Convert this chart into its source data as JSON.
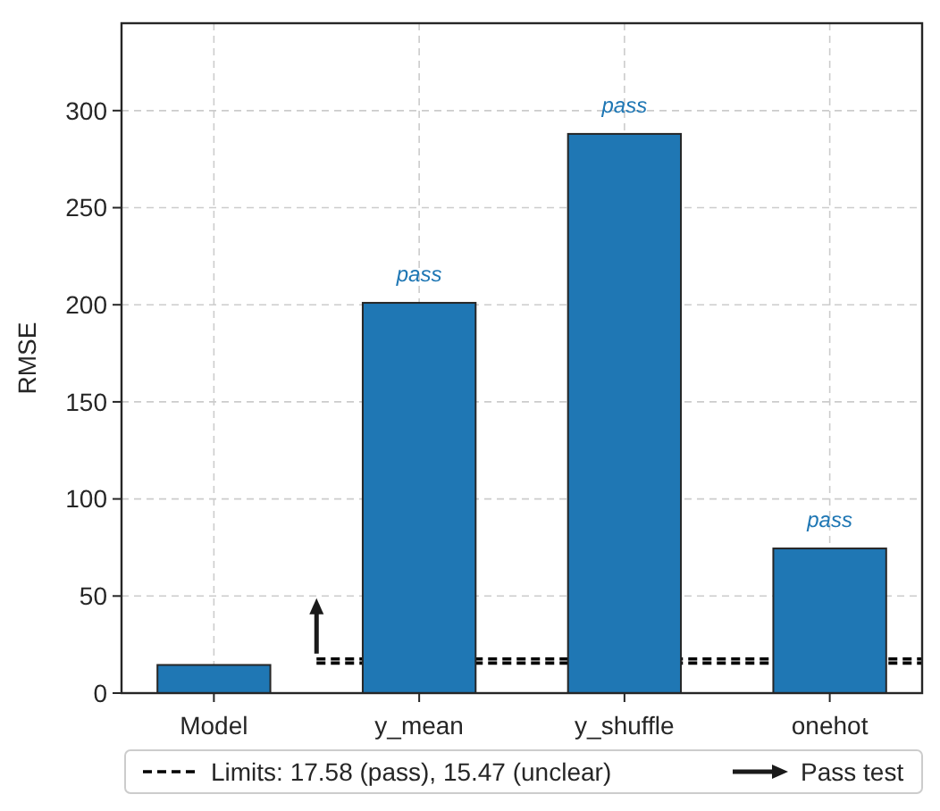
{
  "chart_data": {
    "type": "bar",
    "ylabel": "RMSE",
    "categories": [
      "Model",
      "y_mean",
      "y_shuffle",
      "onehot"
    ],
    "values": [
      14.5,
      201,
      288,
      74.5
    ],
    "color": "#1f77b4",
    "ylim": [
      0,
      345
    ],
    "yticks": [
      0,
      50,
      100,
      150,
      200,
      250,
      300
    ],
    "grid": true,
    "legend": "bottom",
    "ref_lines": [
      {
        "axis": "y",
        "value": 17.58,
        "label": "Limits: 17.58 (pass), 15.47 (unclear)",
        "color": "#000000",
        "line_style": "dashed"
      },
      {
        "axis": "y",
        "value": 15.47,
        "color": "#000000",
        "line_style": "dashed"
      }
    ],
    "annotations": [
      {
        "text": "pass",
        "x": "y_mean",
        "y": 201
      },
      {
        "text": "pass",
        "x": "y_shuffle",
        "y": 288
      },
      {
        "text": "pass",
        "x": "onehot",
        "y": 74.5
      },
      "Pass test"
    ]
  }
}
